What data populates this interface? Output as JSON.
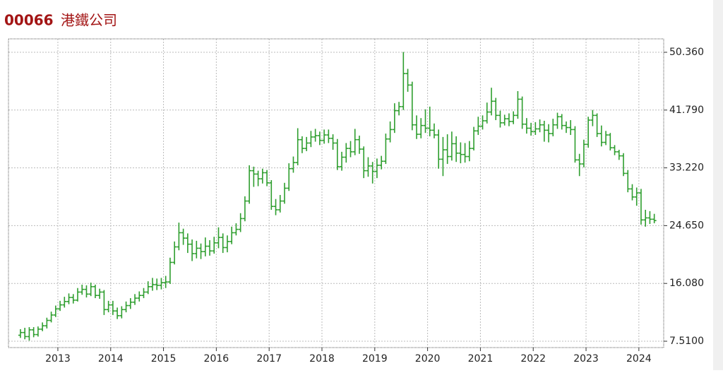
{
  "chart_data": {
    "type": "ohlc",
    "title": {
      "code": "00066",
      "name": "港鐵公司"
    },
    "color": "#2e9e2e",
    "grid": true,
    "ylim": [
      6.57,
      52.35
    ],
    "yticks": [
      {
        "value": 7.51,
        "label": "7.5100"
      },
      {
        "value": 16.08,
        "label": "16.080"
      },
      {
        "value": 24.65,
        "label": "24.650"
      },
      {
        "value": 33.22,
        "label": "33.220"
      },
      {
        "value": 41.79,
        "label": "41.790"
      },
      {
        "value": 50.36,
        "label": "50.360"
      }
    ],
    "xlim": [
      2012.065,
      2024.47
    ],
    "xticks": [
      2013,
      2014,
      2015,
      2016,
      2017,
      2018,
      2019,
      2020,
      2021,
      2022,
      2023,
      2024
    ],
    "x": [
      "2012-04",
      "2012-05",
      "2012-06",
      "2012-07",
      "2012-08",
      "2012-09",
      "2012-10",
      "2012-11",
      "2012-12",
      "2013-01",
      "2013-02",
      "2013-03",
      "2013-04",
      "2013-05",
      "2013-06",
      "2013-07",
      "2013-08",
      "2013-09",
      "2013-10",
      "2013-11",
      "2013-12",
      "2014-01",
      "2014-02",
      "2014-03",
      "2014-04",
      "2014-05",
      "2014-06",
      "2014-07",
      "2014-08",
      "2014-09",
      "2014-10",
      "2014-11",
      "2014-12",
      "2015-01",
      "2015-02",
      "2015-03",
      "2015-04",
      "2015-05",
      "2015-06",
      "2015-07",
      "2015-08",
      "2015-09",
      "2015-10",
      "2015-11",
      "2015-12",
      "2016-01",
      "2016-02",
      "2016-03",
      "2016-04",
      "2016-05",
      "2016-06",
      "2016-07",
      "2016-08",
      "2016-09",
      "2016-10",
      "2016-11",
      "2016-12",
      "2017-01",
      "2017-02",
      "2017-03",
      "2017-04",
      "2017-05",
      "2017-06",
      "2017-07",
      "2017-08",
      "2017-09",
      "2017-10",
      "2017-11",
      "2017-12",
      "2018-01",
      "2018-02",
      "2018-03",
      "2018-04",
      "2018-05",
      "2018-06",
      "2018-07",
      "2018-08",
      "2018-09",
      "2018-10",
      "2018-11",
      "2018-12",
      "2019-01",
      "2019-02",
      "2019-03",
      "2019-04",
      "2019-05",
      "2019-06",
      "2019-07",
      "2019-08",
      "2019-09",
      "2019-10",
      "2019-11",
      "2019-12",
      "2020-01",
      "2020-02",
      "2020-03",
      "2020-04",
      "2020-05",
      "2020-06",
      "2020-07",
      "2020-08",
      "2020-09",
      "2020-10",
      "2020-11",
      "2020-12",
      "2021-01",
      "2021-02",
      "2021-03",
      "2021-04",
      "2021-05",
      "2021-06",
      "2021-07",
      "2021-08",
      "2021-09",
      "2021-10",
      "2021-11",
      "2021-12",
      "2022-01",
      "2022-02",
      "2022-03",
      "2022-04",
      "2022-05",
      "2022-06",
      "2022-07",
      "2022-08",
      "2022-09",
      "2022-10",
      "2022-11",
      "2022-12",
      "2023-01",
      "2023-02",
      "2023-03",
      "2023-04",
      "2023-05",
      "2023-06",
      "2023-07",
      "2023-08",
      "2023-09",
      "2023-10",
      "2023-11",
      "2023-12",
      "2024-01",
      "2024-02",
      "2024-03",
      "2024-04"
    ],
    "open": [
      8.4,
      8.8,
      8.2,
      9.2,
      8.5,
      9.3,
      9.8,
      10.6,
      11.4,
      12.3,
      12.9,
      13.4,
      14.0,
      13.6,
      14.8,
      15.2,
      14.5,
      15.6,
      14.3,
      14.8,
      12.2,
      12.9,
      12.0,
      11.3,
      12.2,
      12.8,
      13.3,
      13.9,
      14.3,
      14.8,
      15.6,
      15.9,
      15.8,
      16.2,
      16.3,
      19.2,
      21.5,
      23.6,
      22.8,
      21.9,
      20.5,
      21.3,
      20.8,
      21.6,
      20.9,
      22.1,
      22.9,
      21.4,
      22.3,
      23.6,
      24.1,
      25.7,
      28.3,
      32.8,
      32.3,
      31.6,
      32.5,
      31.0,
      27.5,
      27.0,
      28.3,
      30.2,
      33.1,
      34.0,
      37.4,
      36.1,
      36.9,
      37.8,
      38.0,
      37.3,
      38.1,
      37.6,
      36.9,
      33.4,
      34.8,
      36.1,
      35.6,
      37.4,
      36.0,
      32.8,
      33.5,
      32.7,
      33.6,
      34.2,
      37.5,
      38.9,
      41.7,
      42.3,
      47.2,
      45.5,
      39.6,
      38.2,
      39.5,
      39.1,
      38.8,
      38.1,
      34.5,
      35.9,
      34.9,
      36.8,
      35.4,
      35.2,
      34.9,
      36.1,
      38.7,
      39.4,
      40.2,
      41.5,
      43.1,
      41.0,
      39.9,
      40.5,
      40.1,
      41.0,
      43.4,
      39.7,
      39.1,
      38.6,
      39.0,
      39.6,
      38.8,
      38.3,
      39.6,
      40.8,
      39.5,
      39.2,
      38.9,
      34.4,
      33.8,
      36.7,
      40.3,
      41.0,
      38.3,
      37.0,
      38.1,
      36.2,
      35.6,
      35.0,
      32.4,
      30.1,
      28.9,
      29.5,
      25.5,
      25.8,
      25.6
    ],
    "high": [
      9.3,
      9.5,
      9.6,
      9.6,
      9.7,
      10.3,
      11.0,
      11.9,
      12.8,
      13.5,
      14.1,
      14.6,
      14.5,
      15.4,
      15.9,
      15.8,
      16.2,
      15.9,
      15.3,
      15.1,
      13.5,
      13.5,
      12.5,
      12.7,
      13.4,
      13.9,
      14.5,
      14.9,
      15.4,
      16.4,
      16.9,
      16.8,
      16.9,
      17.2,
      19.9,
      22.3,
      25.1,
      24.2,
      23.5,
      22.6,
      22.4,
      22.0,
      22.9,
      22.5,
      23.0,
      24.4,
      23.5,
      23.2,
      24.5,
      25.0,
      26.5,
      29.0,
      33.6,
      33.4,
      32.8,
      33.1,
      32.9,
      31.4,
      28.6,
      29.2,
      31.0,
      33.9,
      34.9,
      39.1,
      37.9,
      37.8,
      38.7,
      39.0,
      38.6,
      38.9,
      38.9,
      38.2,
      37.5,
      35.6,
      36.9,
      37.2,
      39.0,
      38.0,
      36.4,
      34.8,
      34.1,
      34.6,
      35.0,
      38.3,
      40.1,
      42.8,
      43.0,
      50.4,
      47.9,
      46.0,
      41.0,
      40.6,
      41.9,
      42.3,
      39.8,
      38.9,
      37.8,
      38.2,
      38.6,
      37.9,
      37.0,
      36.9,
      37.2,
      39.3,
      40.8,
      41.0,
      42.9,
      45.1,
      43.6,
      41.7,
      41.1,
      41.3,
      41.6,
      44.6,
      43.8,
      40.6,
      39.9,
      40.0,
      40.4,
      40.2,
      39.7,
      40.5,
      41.4,
      41.2,
      40.1,
      40.3,
      39.4,
      35.3,
      37.4,
      40.8,
      41.8,
      41.3,
      39.5,
      38.7,
      38.4,
      36.6,
      35.9,
      35.4,
      32.9,
      30.8,
      30.3,
      30.1,
      27.0,
      26.8,
      26.4
    ],
    "low": [
      8.0,
      7.8,
      7.6,
      8.1,
      8.2,
      9.0,
      9.4,
      10.3,
      11.1,
      12.0,
      12.5,
      13.0,
      13.1,
      13.4,
      14.4,
      14.0,
      14.2,
      13.9,
      13.8,
      11.4,
      11.8,
      11.4,
      10.8,
      10.9,
      11.8,
      12.3,
      12.9,
      13.4,
      13.9,
      14.5,
      15.0,
      15.1,
      15.2,
      15.4,
      16.0,
      18.9,
      21.0,
      21.8,
      20.6,
      19.4,
      19.8,
      19.7,
      20.1,
      20.2,
      20.5,
      21.3,
      20.6,
      20.7,
      21.9,
      23.2,
      23.7,
      25.3,
      27.9,
      30.4,
      30.5,
      30.9,
      30.5,
      27.0,
      26.2,
      26.6,
      27.9,
      29.8,
      32.5,
      33.6,
      35.4,
      35.7,
      36.3,
      37.1,
      36.6,
      36.8,
      36.9,
      35.9,
      32.9,
      32.8,
      34.0,
      34.8,
      35.1,
      35.3,
      31.7,
      31.9,
      30.9,
      31.7,
      33.0,
      33.8,
      37.0,
      38.4,
      41.0,
      41.8,
      44.5,
      38.8,
      37.5,
      37.6,
      38.4,
      37.9,
      37.6,
      33.1,
      32.0,
      33.8,
      34.3,
      34.1,
      33.9,
      34.0,
      34.2,
      35.8,
      38.1,
      38.9,
      39.8,
      41.0,
      40.3,
      39.2,
      39.5,
      39.4,
      39.7,
      40.5,
      39.0,
      38.3,
      38.0,
      38.1,
      38.5,
      37.1,
      37.0,
      37.9,
      39.0,
      38.9,
      38.4,
      38.1,
      34.0,
      32.0,
      33.3,
      36.2,
      39.4,
      37.8,
      36.4,
      36.6,
      35.8,
      35.1,
      34.4,
      32.0,
      29.6,
      28.4,
      27.6,
      24.8,
      24.5,
      24.9,
      25.0
    ],
    "close": [
      8.8,
      8.2,
      9.2,
      8.5,
      9.3,
      9.8,
      10.6,
      11.4,
      12.3,
      12.9,
      13.4,
      14.0,
      13.6,
      14.8,
      15.2,
      14.5,
      15.6,
      14.3,
      14.8,
      12.2,
      12.9,
      12.0,
      11.3,
      12.2,
      12.8,
      13.3,
      13.9,
      14.3,
      14.8,
      15.6,
      15.9,
      15.8,
      16.2,
      16.3,
      19.2,
      21.5,
      23.6,
      22.8,
      21.9,
      20.5,
      21.3,
      20.8,
      21.6,
      20.9,
      22.1,
      22.9,
      21.4,
      22.3,
      23.6,
      24.1,
      25.7,
      28.3,
      32.8,
      32.3,
      31.6,
      32.5,
      31.0,
      27.5,
      27.0,
      28.3,
      30.2,
      33.1,
      34.0,
      37.4,
      36.1,
      36.9,
      37.8,
      38.0,
      37.3,
      38.1,
      37.6,
      36.9,
      33.4,
      34.8,
      36.1,
      35.6,
      37.4,
      36.0,
      32.8,
      33.5,
      32.7,
      33.6,
      34.2,
      37.5,
      38.9,
      41.7,
      42.3,
      47.2,
      45.5,
      39.6,
      38.2,
      39.5,
      39.1,
      38.8,
      38.1,
      34.5,
      35.9,
      34.9,
      36.8,
      35.4,
      35.2,
      34.9,
      36.1,
      38.7,
      39.4,
      40.2,
      41.5,
      43.1,
      41.0,
      39.9,
      40.5,
      40.1,
      41.0,
      43.4,
      39.7,
      39.1,
      38.6,
      39.0,
      39.6,
      38.8,
      38.3,
      39.6,
      40.8,
      39.5,
      39.2,
      38.9,
      34.4,
      33.8,
      36.7,
      40.3,
      41.0,
      38.3,
      37.0,
      38.1,
      36.2,
      35.6,
      35.0,
      32.4,
      30.1,
      28.9,
      29.5,
      25.5,
      25.8,
      25.6,
      25.4
    ]
  }
}
